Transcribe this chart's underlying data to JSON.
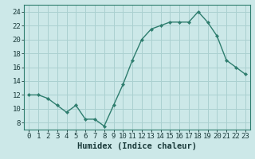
{
  "x": [
    0,
    1,
    2,
    3,
    4,
    5,
    6,
    7,
    8,
    9,
    10,
    11,
    12,
    13,
    14,
    15,
    16,
    17,
    18,
    19,
    20,
    21,
    22,
    23
  ],
  "y": [
    12,
    12,
    11.5,
    10.5,
    9.5,
    10.5,
    8.5,
    8.5,
    7.5,
    10.5,
    13.5,
    17,
    20,
    21.5,
    22,
    22.5,
    22.5,
    22.5,
    24,
    22.5,
    20.5,
    17,
    16,
    15
  ],
  "line_color": "#2e7d6e",
  "marker_color": "#2e7d6e",
  "bg_color": "#cce8e8",
  "grid_color": "#aad0d0",
  "xlabel": "Humidex (Indice chaleur)",
  "xlim": [
    -0.5,
    23.5
  ],
  "ylim": [
    7,
    25
  ],
  "yticks": [
    8,
    10,
    12,
    14,
    16,
    18,
    20,
    22,
    24
  ],
  "xticks": [
    0,
    1,
    2,
    3,
    4,
    5,
    6,
    7,
    8,
    9,
    10,
    11,
    12,
    13,
    14,
    15,
    16,
    17,
    18,
    19,
    20,
    21,
    22,
    23
  ],
  "tick_fontsize": 6.5,
  "label_fontsize": 7.5,
  "figsize": [
    3.2,
    2.0
  ],
  "dpi": 100
}
